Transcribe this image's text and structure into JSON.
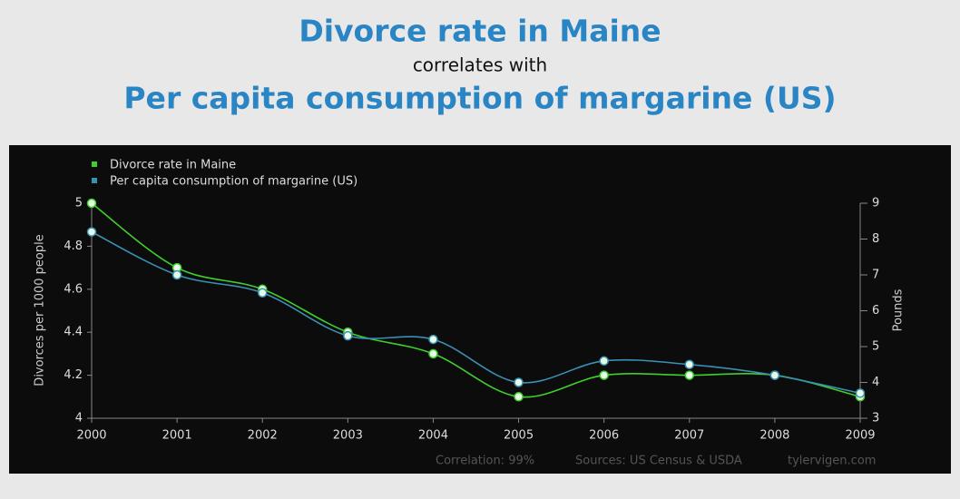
{
  "chart_data": {
    "type": "line",
    "title": "Divorce rate in Maine",
    "subtitle": "correlates with",
    "title2": "Per capita consumption of margarine (US)",
    "categories": [
      "2000",
      "2001",
      "2002",
      "2003",
      "2004",
      "2005",
      "2006",
      "2007",
      "2008",
      "2009"
    ],
    "series": [
      {
        "name": "Divorce rate in Maine",
        "color": "#3fcf2a",
        "values": [
          5.0,
          4.7,
          4.6,
          4.4,
          4.3,
          4.1,
          4.2,
          4.2,
          4.2,
          4.1
        ]
      },
      {
        "name": "Per capita consumption of margarine (US)",
        "color": "#3a90b4",
        "axis": "y2",
        "values": [
          8.2,
          7.0,
          6.5,
          5.3,
          5.2,
          4.0,
          4.6,
          4.5,
          4.2,
          3.7
        ]
      }
    ],
    "ylabel": "Divorces per 1000 people",
    "y2label": "Pounds",
    "ylim": [
      4,
      5
    ],
    "yticks": [
      4,
      4.2,
      4.4,
      4.6,
      4.8,
      5
    ],
    "y2lim": [
      3,
      9
    ],
    "y2ticks": [
      3,
      4,
      5,
      6,
      7,
      8,
      9
    ],
    "legend": "top-left",
    "annotations": [
      "Correlation: 99%",
      "Sources: US Census & USDA",
      "tylervigen.com"
    ]
  }
}
